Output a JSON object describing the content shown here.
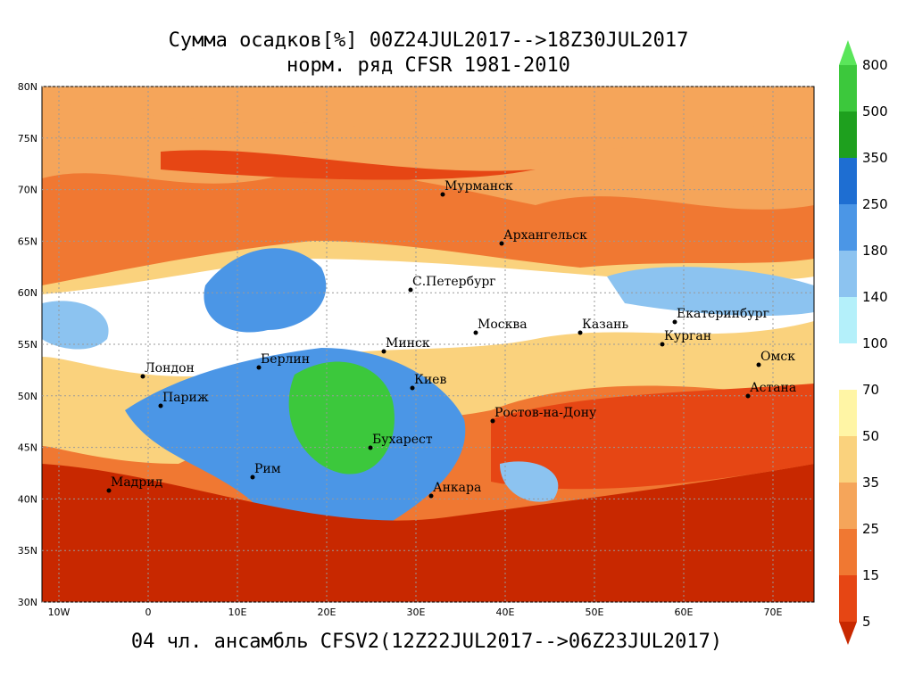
{
  "title": [
    "Сумма осадков[%] 00Z24JUL2017-->18Z30JUL2017",
    "норм. ряд CFSR 1981-2010"
  ],
  "footer": "04 чл. ансамбль CFSV2(12Z22JUL2017-->06Z23JUL2017)",
  "lat_labels": [
    "80N",
    "75N",
    "70N",
    "65N",
    "60N",
    "55N",
    "50N",
    "45N",
    "40N",
    "35N",
    "30N"
  ],
  "lon_labels": [
    "10W",
    "0",
    "10E",
    "20E",
    "30E",
    "40E",
    "50E",
    "60E",
    "70E"
  ],
  "cities": [
    "Мурманск",
    "Архангельск",
    "С.Петербург",
    "Москва",
    "Казань",
    "Екатеринбург",
    "Курган",
    "Омск",
    "Астана",
    "Минск",
    "Берлин",
    "Лондон",
    "Париж",
    "Киев",
    "Ростов-на-Дону",
    "Бухарест",
    "Рим",
    "Мадрид",
    "Анкара"
  ],
  "colorbar": {
    "labels": [
      "800",
      "500",
      "350",
      "250",
      "180",
      "140",
      "100",
      "70",
      "50",
      "35",
      "25",
      "15",
      "5"
    ],
    "colors": [
      "#5ae65a",
      "#3cc83c",
      "#1ea01e",
      "#1e6ed2",
      "#4b96e6",
      "#8cc3f0",
      "#b4f0fa",
      "#ffffff",
      "#fff5a5",
      "#fad27d",
      "#f5a55a",
      "#f07832",
      "#e64614",
      "#c82800"
    ]
  }
}
